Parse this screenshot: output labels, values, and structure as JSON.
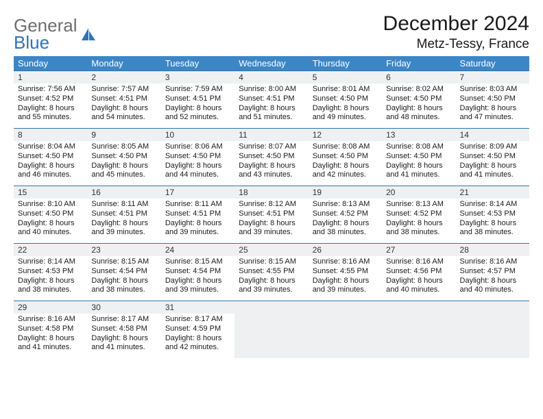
{
  "logo": {
    "general": "General",
    "blue": "Blue"
  },
  "title": "December 2024",
  "location": "Metz-Tessy, France",
  "colors": {
    "header_bg": "#3d86c6",
    "header_text": "#ffffff",
    "rule": "#2f74b5",
    "daynum_bg": "#eef0f1",
    "page_bg": "#ffffff",
    "text": "#1a1a1a",
    "logo_gray": "#6e6e6e",
    "logo_blue": "#2f74b5"
  },
  "typography": {
    "title_fontsize": 30,
    "location_fontsize": 19,
    "weekday_fontsize": 13,
    "daynum_fontsize": 12,
    "cell_fontsize": 11,
    "logo_fontsize": 26
  },
  "weekdays": [
    "Sunday",
    "Monday",
    "Tuesday",
    "Wednesday",
    "Thursday",
    "Friday",
    "Saturday"
  ],
  "weeks": [
    [
      {
        "day": "1",
        "sunrise": "Sunrise: 7:56 AM",
        "sunset": "Sunset: 4:52 PM",
        "daylight": "Daylight: 8 hours and 55 minutes."
      },
      {
        "day": "2",
        "sunrise": "Sunrise: 7:57 AM",
        "sunset": "Sunset: 4:51 PM",
        "daylight": "Daylight: 8 hours and 54 minutes."
      },
      {
        "day": "3",
        "sunrise": "Sunrise: 7:59 AM",
        "sunset": "Sunset: 4:51 PM",
        "daylight": "Daylight: 8 hours and 52 minutes."
      },
      {
        "day": "4",
        "sunrise": "Sunrise: 8:00 AM",
        "sunset": "Sunset: 4:51 PM",
        "daylight": "Daylight: 8 hours and 51 minutes."
      },
      {
        "day": "5",
        "sunrise": "Sunrise: 8:01 AM",
        "sunset": "Sunset: 4:50 PM",
        "daylight": "Daylight: 8 hours and 49 minutes."
      },
      {
        "day": "6",
        "sunrise": "Sunrise: 8:02 AM",
        "sunset": "Sunset: 4:50 PM",
        "daylight": "Daylight: 8 hours and 48 minutes."
      },
      {
        "day": "7",
        "sunrise": "Sunrise: 8:03 AM",
        "sunset": "Sunset: 4:50 PM",
        "daylight": "Daylight: 8 hours and 47 minutes."
      }
    ],
    [
      {
        "day": "8",
        "sunrise": "Sunrise: 8:04 AM",
        "sunset": "Sunset: 4:50 PM",
        "daylight": "Daylight: 8 hours and 46 minutes."
      },
      {
        "day": "9",
        "sunrise": "Sunrise: 8:05 AM",
        "sunset": "Sunset: 4:50 PM",
        "daylight": "Daylight: 8 hours and 45 minutes."
      },
      {
        "day": "10",
        "sunrise": "Sunrise: 8:06 AM",
        "sunset": "Sunset: 4:50 PM",
        "daylight": "Daylight: 8 hours and 44 minutes."
      },
      {
        "day": "11",
        "sunrise": "Sunrise: 8:07 AM",
        "sunset": "Sunset: 4:50 PM",
        "daylight": "Daylight: 8 hours and 43 minutes."
      },
      {
        "day": "12",
        "sunrise": "Sunrise: 8:08 AM",
        "sunset": "Sunset: 4:50 PM",
        "daylight": "Daylight: 8 hours and 42 minutes."
      },
      {
        "day": "13",
        "sunrise": "Sunrise: 8:08 AM",
        "sunset": "Sunset: 4:50 PM",
        "daylight": "Daylight: 8 hours and 41 minutes."
      },
      {
        "day": "14",
        "sunrise": "Sunrise: 8:09 AM",
        "sunset": "Sunset: 4:50 PM",
        "daylight": "Daylight: 8 hours and 41 minutes."
      }
    ],
    [
      {
        "day": "15",
        "sunrise": "Sunrise: 8:10 AM",
        "sunset": "Sunset: 4:50 PM",
        "daylight": "Daylight: 8 hours and 40 minutes."
      },
      {
        "day": "16",
        "sunrise": "Sunrise: 8:11 AM",
        "sunset": "Sunset: 4:51 PM",
        "daylight": "Daylight: 8 hours and 39 minutes."
      },
      {
        "day": "17",
        "sunrise": "Sunrise: 8:11 AM",
        "sunset": "Sunset: 4:51 PM",
        "daylight": "Daylight: 8 hours and 39 minutes."
      },
      {
        "day": "18",
        "sunrise": "Sunrise: 8:12 AM",
        "sunset": "Sunset: 4:51 PM",
        "daylight": "Daylight: 8 hours and 39 minutes."
      },
      {
        "day": "19",
        "sunrise": "Sunrise: 8:13 AM",
        "sunset": "Sunset: 4:52 PM",
        "daylight": "Daylight: 8 hours and 38 minutes."
      },
      {
        "day": "20",
        "sunrise": "Sunrise: 8:13 AM",
        "sunset": "Sunset: 4:52 PM",
        "daylight": "Daylight: 8 hours and 38 minutes."
      },
      {
        "day": "21",
        "sunrise": "Sunrise: 8:14 AM",
        "sunset": "Sunset: 4:53 PM",
        "daylight": "Daylight: 8 hours and 38 minutes."
      }
    ],
    [
      {
        "day": "22",
        "sunrise": "Sunrise: 8:14 AM",
        "sunset": "Sunset: 4:53 PM",
        "daylight": "Daylight: 8 hours and 38 minutes."
      },
      {
        "day": "23",
        "sunrise": "Sunrise: 8:15 AM",
        "sunset": "Sunset: 4:54 PM",
        "daylight": "Daylight: 8 hours and 38 minutes."
      },
      {
        "day": "24",
        "sunrise": "Sunrise: 8:15 AM",
        "sunset": "Sunset: 4:54 PM",
        "daylight": "Daylight: 8 hours and 39 minutes."
      },
      {
        "day": "25",
        "sunrise": "Sunrise: 8:15 AM",
        "sunset": "Sunset: 4:55 PM",
        "daylight": "Daylight: 8 hours and 39 minutes."
      },
      {
        "day": "26",
        "sunrise": "Sunrise: 8:16 AM",
        "sunset": "Sunset: 4:55 PM",
        "daylight": "Daylight: 8 hours and 39 minutes."
      },
      {
        "day": "27",
        "sunrise": "Sunrise: 8:16 AM",
        "sunset": "Sunset: 4:56 PM",
        "daylight": "Daylight: 8 hours and 40 minutes."
      },
      {
        "day": "28",
        "sunrise": "Sunrise: 8:16 AM",
        "sunset": "Sunset: 4:57 PM",
        "daylight": "Daylight: 8 hours and 40 minutes."
      }
    ],
    [
      {
        "day": "29",
        "sunrise": "Sunrise: 8:16 AM",
        "sunset": "Sunset: 4:58 PM",
        "daylight": "Daylight: 8 hours and 41 minutes."
      },
      {
        "day": "30",
        "sunrise": "Sunrise: 8:17 AM",
        "sunset": "Sunset: 4:58 PM",
        "daylight": "Daylight: 8 hours and 41 minutes."
      },
      {
        "day": "31",
        "sunrise": "Sunrise: 8:17 AM",
        "sunset": "Sunset: 4:59 PM",
        "daylight": "Daylight: 8 hours and 42 minutes."
      },
      null,
      null,
      null,
      null
    ]
  ]
}
